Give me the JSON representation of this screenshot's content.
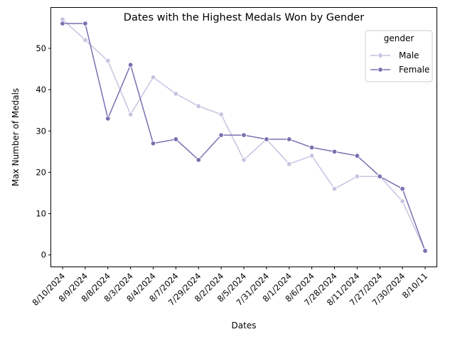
{
  "chart_data": {
    "type": "line",
    "title": "Dates with the Highest Medals Won by Gender",
    "xlabel": "Dates",
    "ylabel": "Max Number of Medals",
    "categories": [
      "8/10/2024",
      "8/9/2024",
      "8/8/2024",
      "8/3/2024",
      "8/4/2024",
      "8/7/2024",
      "7/29/2024",
      "8/2/2024",
      "8/5/2024",
      "7/31/2024",
      "8/1/2024",
      "8/6/2024",
      "7/28/2024",
      "8/11/2024",
      "7/27/2024",
      "7/30/2024",
      "8/10/11"
    ],
    "series": [
      {
        "name": "Male",
        "color": "#c6c4e1",
        "values": [
          57,
          52,
          47,
          34,
          43,
          39,
          36,
          34,
          23,
          28,
          22,
          24,
          16,
          19,
          19,
          13,
          1
        ]
      },
      {
        "name": "Female",
        "color": "#7a70b0",
        "values": [
          56,
          56,
          33,
          46,
          27,
          28,
          23,
          29,
          29,
          28,
          28,
          26,
          25,
          24,
          19,
          16,
          1
        ]
      }
    ],
    "ylim": [
      -2.8,
      59.8
    ],
    "yticks": [
      0,
      10,
      20,
      30,
      40,
      50
    ],
    "grid": false,
    "legend": {
      "title": "gender",
      "placement": "top-right"
    }
  }
}
